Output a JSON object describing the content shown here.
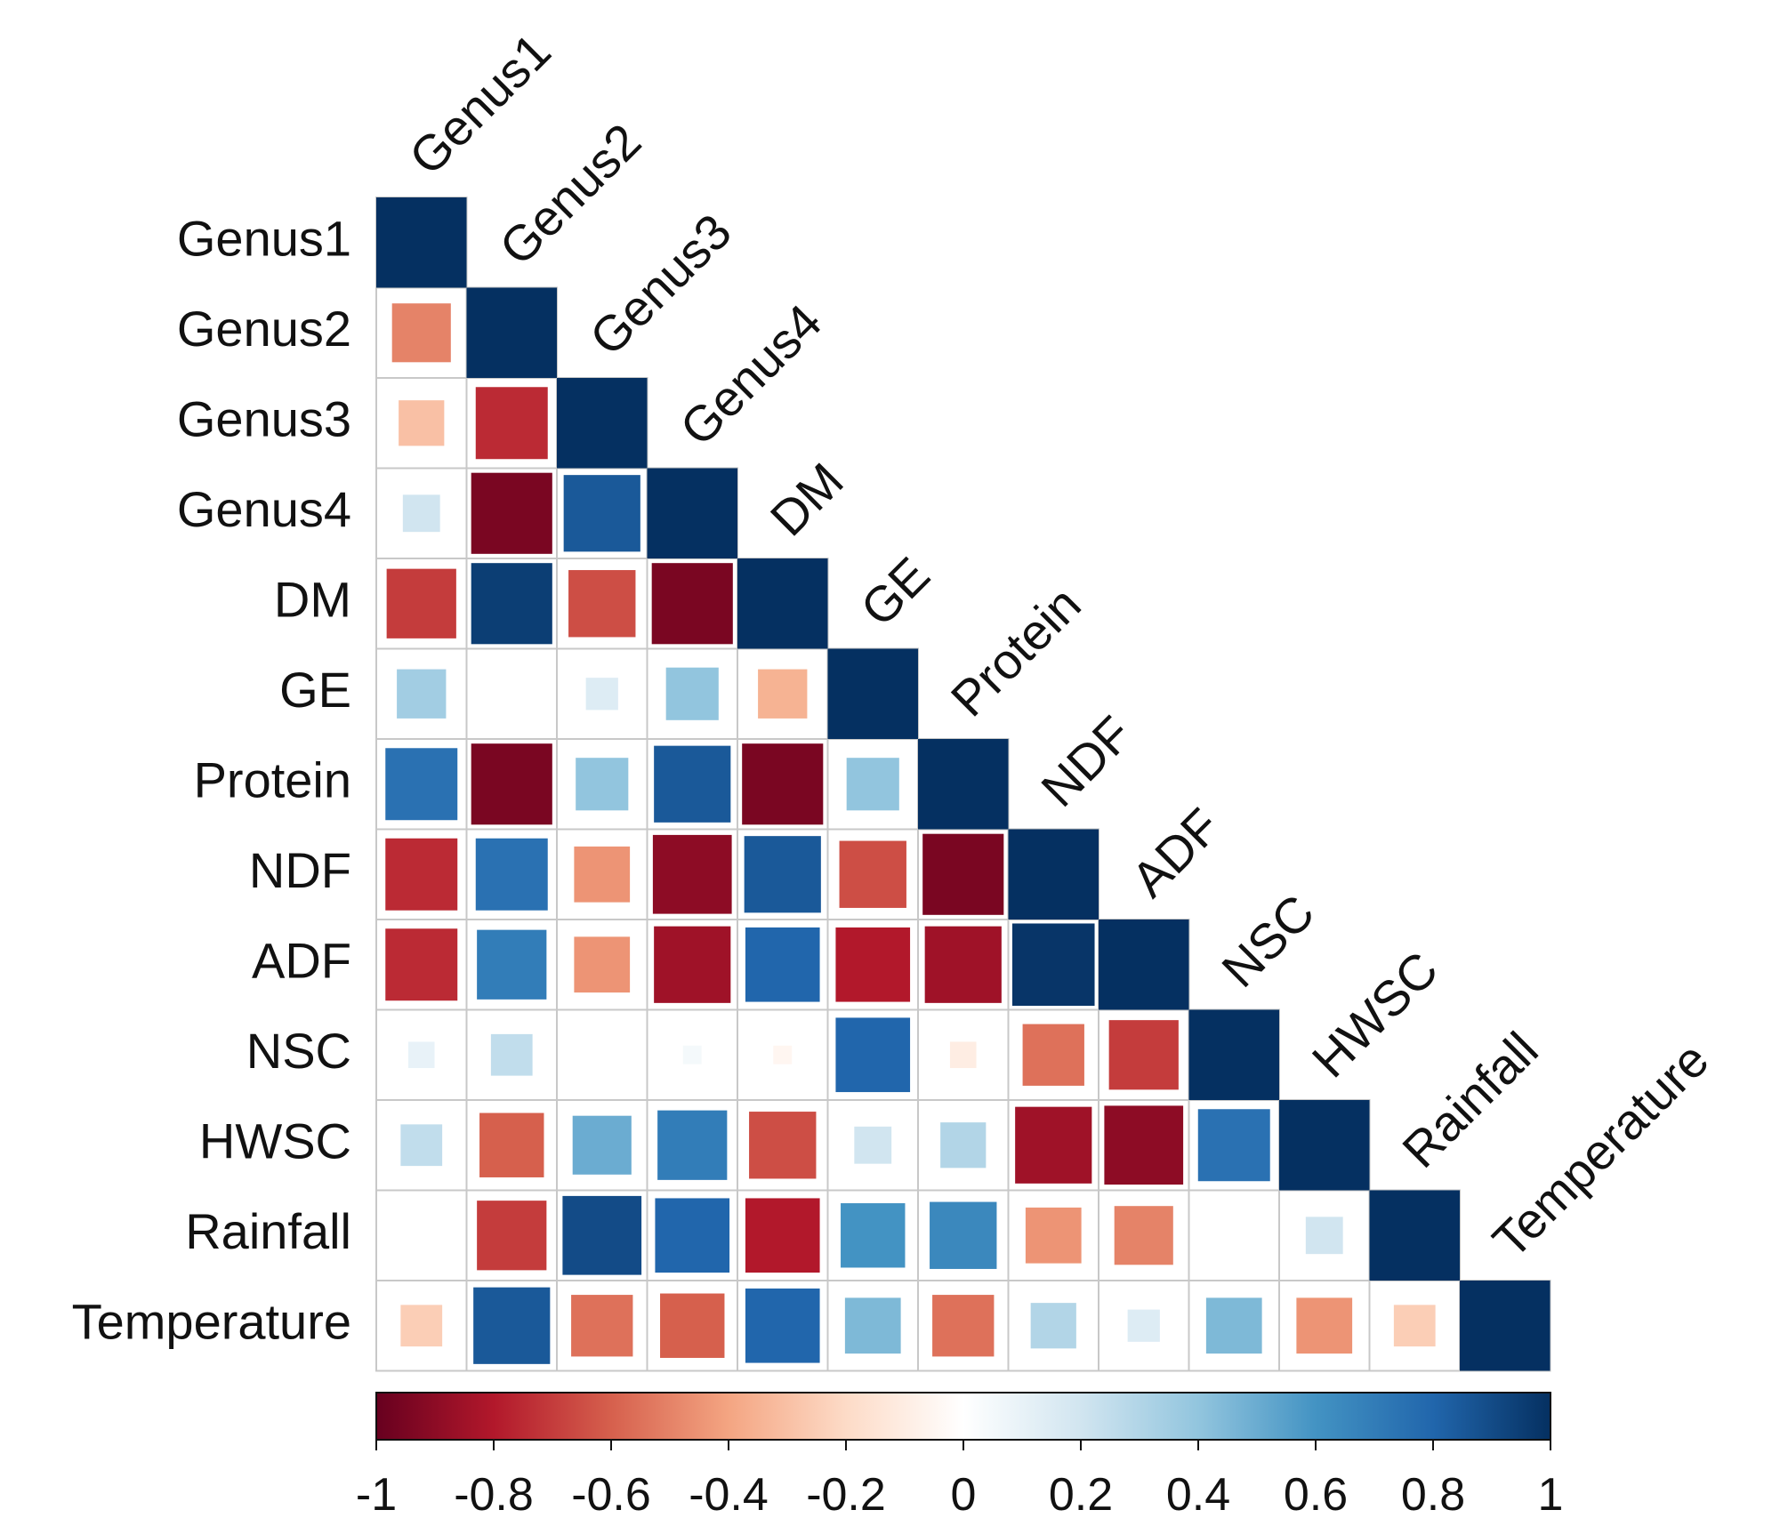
{
  "chart_data": {
    "type": "heatmap",
    "subtype": "correlation-matrix-lower-triangle",
    "variables": [
      "Genus1",
      "Genus2",
      "Genus3",
      "Genus4",
      "DM",
      "GE",
      "Protein",
      "NDF",
      "ADF",
      "NSC",
      "HWSC",
      "Rainfall",
      "Temperature"
    ],
    "matrix": [
      [
        1
      ],
      [
        -0.5,
        1
      ],
      [
        -0.3,
        -0.75,
        1
      ],
      [
        0.2,
        -0.95,
        0.85,
        1
      ],
      [
        -0.7,
        0.95,
        -0.65,
        -0.95,
        1
      ],
      [
        0.35,
        0.0,
        0.15,
        0.4,
        -0.35,
        1
      ],
      [
        0.75,
        -0.95,
        0.4,
        0.85,
        -0.95,
        0.4,
        1
      ],
      [
        -0.75,
        0.75,
        -0.45,
        -0.9,
        0.85,
        -0.65,
        -0.95,
        1
      ],
      [
        -0.75,
        0.7,
        -0.45,
        -0.85,
        0.8,
        -0.8,
        -0.85,
        0.98,
        1
      ],
      [
        0.1,
        0.25,
        0.0,
        0.05,
        -0.05,
        0.8,
        -0.1,
        -0.55,
        -0.7,
        1
      ],
      [
        0.25,
        -0.6,
        0.5,
        0.7,
        -0.65,
        0.2,
        0.3,
        -0.85,
        -0.9,
        0.75,
        1
      ],
      [
        0.0,
        -0.7,
        0.9,
        0.8,
        -0.8,
        0.6,
        0.65,
        -0.45,
        -0.5,
        0.0,
        0.2,
        1
      ],
      [
        -0.25,
        0.85,
        -0.55,
        -0.6,
        0.8,
        0.45,
        -0.55,
        0.3,
        0.15,
        0.45,
        -0.45,
        -0.25,
        1
      ]
    ],
    "colorbar": {
      "min": -1,
      "max": 1,
      "ticks": [
        -1,
        -0.8,
        -0.6,
        -0.4,
        -0.2,
        0,
        0.2,
        0.4,
        0.6,
        0.8,
        1
      ],
      "tick_labels": [
        "-1",
        "-0.8",
        "-0.6",
        "-0.4",
        "-0.2",
        "0",
        "0.2",
        "0.4",
        "0.6",
        "0.8",
        "1"
      ],
      "palette": [
        "#67001f",
        "#b2182b",
        "#d6604d",
        "#f4a582",
        "#fddbc7",
        "#ffffff",
        "#d1e5f0",
        "#92c5de",
        "#4393c3",
        "#2166ac",
        "#053061"
      ]
    },
    "title": "",
    "xlabel": "",
    "ylabel": ""
  }
}
